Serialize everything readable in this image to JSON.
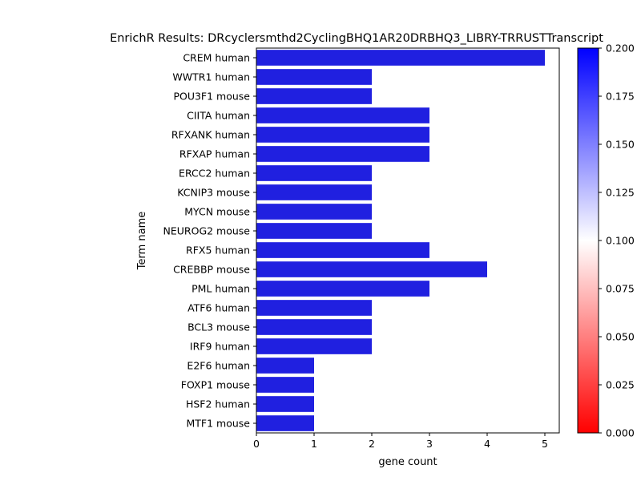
{
  "chart_data": {
    "type": "bar",
    "orientation": "horizontal",
    "title": "EnrichR Results: DRcyclersmthd2CyclingBHQ1AR20DRBHQ3_LIBRY-TRRUSTTranscript",
    "xlabel": "gene count",
    "ylabel": "Term name",
    "xlim": [
      0,
      5.25
    ],
    "xticks": [
      "0",
      "1",
      "2",
      "3",
      "4",
      "5"
    ],
    "categories": [
      "CREM human",
      "WWTR1 human",
      "POU3F1 mouse",
      "CIITA human",
      "RFXANK human",
      "RFXAP human",
      "ERCC2 human",
      "KCNIP3 mouse",
      "MYCN mouse",
      "NEUROG2 mouse",
      "RFX5 human",
      "CREBBP mouse",
      "PML human",
      "ATF6 human",
      "BCL3 mouse",
      "IRF9 human",
      "E2F6 human",
      "FOXP1 mouse",
      "HSF2 human",
      "MTF1 mouse"
    ],
    "values": [
      5,
      2,
      2,
      3,
      3,
      3,
      2,
      2,
      2,
      2,
      3,
      4,
      3,
      2,
      2,
      2,
      1,
      1,
      1,
      1
    ],
    "bar_color": "#2020e0",
    "grid": false,
    "colorbar": {
      "range": [
        0.0,
        0.2
      ],
      "ticks": [
        "0.000",
        "0.025",
        "0.050",
        "0.075",
        "0.100",
        "0.125",
        "0.150",
        "0.175",
        "0.200"
      ],
      "colors": [
        "#ff0000",
        "#ffffff",
        "#0000ff"
      ]
    }
  }
}
